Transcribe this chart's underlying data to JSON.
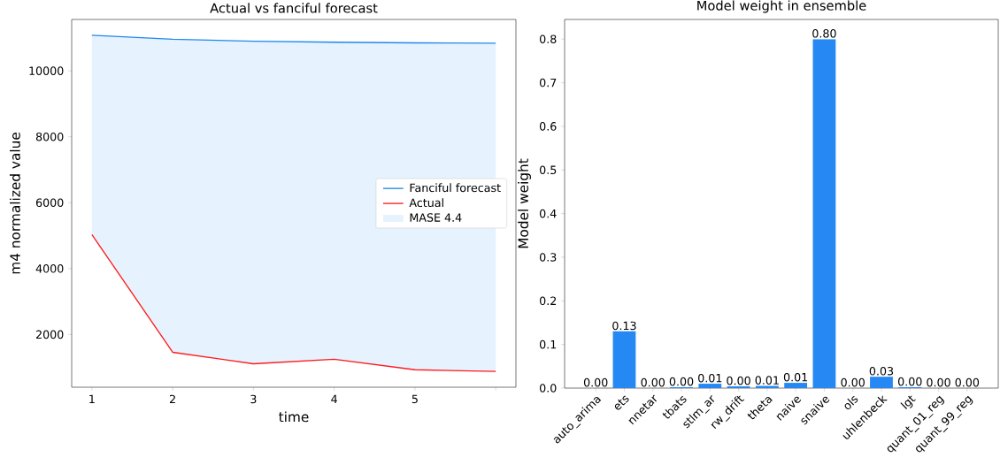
{
  "chart_data": [
    {
      "type": "line",
      "title": "Actual vs fanciful forecast",
      "xlabel": "time",
      "ylabel": "m4 normalized value",
      "x": [
        1,
        2,
        3,
        4,
        5,
        6
      ],
      "series": [
        {
          "name": "Fanciful forecast",
          "color": "#1e88f0",
          "values": [
            11080,
            10960,
            10900,
            10870,
            10850,
            10840
          ],
          "lower": [
            5030,
            1460,
            1110,
            1250,
            930,
            880
          ],
          "upper": [
            11080,
            10960,
            10900,
            10870,
            10850,
            10840
          ]
        },
        {
          "name": "Actual",
          "color": "#ff1a1a",
          "values": [
            5030,
            1460,
            1110,
            1250,
            930,
            880
          ]
        }
      ],
      "xlim": [
        0.75,
        6.25
      ],
      "ylim": [
        400,
        11560
      ],
      "xticks": [
        1,
        2,
        3,
        4,
        5,
        {
          "value": 6,
          "label": null
        }
      ],
      "yticks": [
        2000,
        4000,
        6000,
        8000,
        10000
      ],
      "annotations": [
        "MASE 4.4"
      ],
      "legend": "right"
    },
    {
      "type": "bar",
      "title": "Model weight in ensemble",
      "ylabel": "Model weight",
      "categories": [
        "auto_arima",
        "ets",
        "nnetar",
        "tbats",
        "stlm_ar",
        "rw_drift",
        "theta",
        "naive",
        "snaive",
        "ols",
        "uhlenbeck",
        "lgt",
        "quant_01_reg",
        "quant_99_reg"
      ],
      "values": [
        0,
        0.13,
        0,
        0.002,
        0.01,
        0.004,
        0.005,
        0.012,
        0.8,
        0,
        0.026,
        0.002,
        0,
        0
      ],
      "value_labels": [
        "0.00",
        "0.13",
        "0.00",
        "0.00",
        "0.01",
        "0.00",
        "0.01",
        "0.01",
        "0.80",
        "0.00",
        "0.03",
        "0.00",
        "0.00",
        "0.00"
      ],
      "color": "#2688f2",
      "ylim": [
        0,
        0.845
      ],
      "yticks": [
        {
          "value": 0,
          "label": "0.0"
        },
        0.1,
        0.2,
        0.3,
        0.4,
        0.5,
        0.6,
        0.7,
        0.8
      ]
    }
  ]
}
